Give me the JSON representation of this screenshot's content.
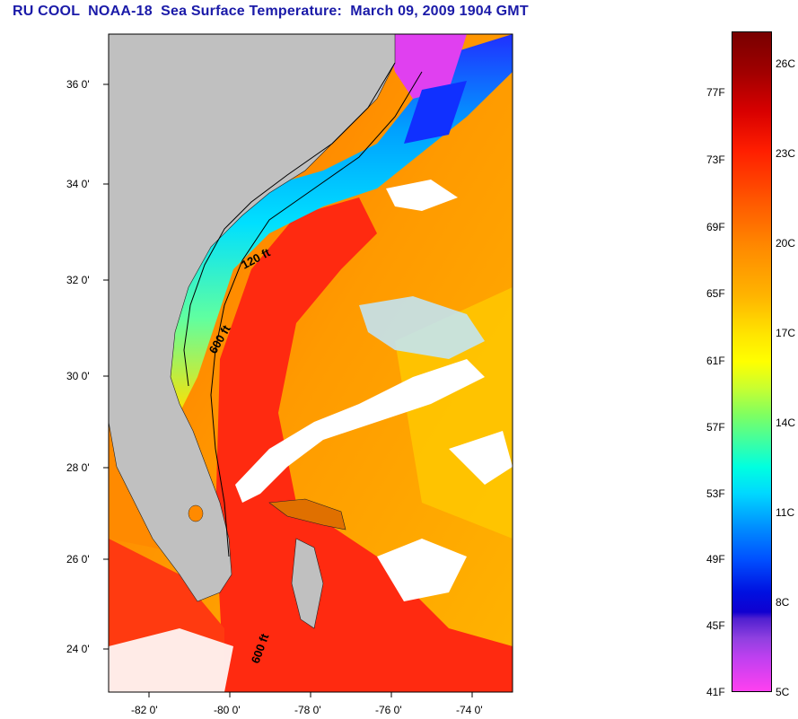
{
  "title": "RU COOL  NOAA-18  Sea Surface Temperature:  March 09, 2009 1904 GMT",
  "map": {
    "lat_labels": [
      "36 0'",
      "34 0'",
      "32 0'",
      "30 0'",
      "28 0'",
      "26 0'",
      "24 0'"
    ],
    "lon_labels": [
      "-82 0'",
      "-80 0'",
      "-78 0'",
      "-76 0'",
      "-74 0'"
    ],
    "contour_labels": [
      "120 ft",
      "600 ft",
      "600 ft"
    ],
    "colors": {
      "land": "#c0c0c0",
      "cloud": "#ffffff",
      "gulfstream": "#ff2a10",
      "offshore_warm": "#ff7a10",
      "shelf_cool": "#00c8ff",
      "shelf_cold": "#0040ff",
      "north_cold": "#e040f0"
    }
  },
  "colorbar": {
    "fahrenheit": [
      "77F",
      "73F",
      "69F",
      "65F",
      "61F",
      "57F",
      "53F",
      "49F",
      "45F",
      "41F"
    ],
    "celsius": [
      "26C",
      "23C",
      "20C",
      "17C",
      "14C",
      "11C",
      "8C",
      "5C"
    ],
    "range_f": [
      41,
      80
    ],
    "range_c": [
      5,
      27
    ]
  }
}
